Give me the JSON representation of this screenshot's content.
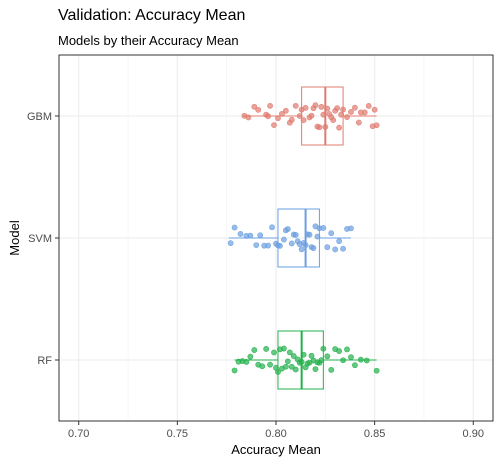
{
  "chart_data": {
    "type": "boxplot",
    "title": "Validation: Accuracy Mean",
    "subtitle": "Models by their Accuracy Mean",
    "xlabel": "Accuracy Mean",
    "ylabel": "Model",
    "xlim": [
      0.69,
      0.91
    ],
    "xticks": [
      "0.70",
      "0.75",
      "0.80",
      "0.85",
      "0.90"
    ],
    "xtick_values": [
      0.7,
      0.75,
      0.8,
      0.85,
      0.9
    ],
    "categories": [
      "GBM",
      "SVM",
      "RF"
    ],
    "grid": true,
    "legend": "none",
    "series": [
      {
        "category": "GBM",
        "color": "#e07b6f",
        "box": {
          "whisker_low": 0.783,
          "q1": 0.813,
          "median": 0.825,
          "q3": 0.834,
          "whisker_high": 0.851
        },
        "points": [
          0.784,
          0.786,
          0.789,
          0.791,
          0.795,
          0.796,
          0.797,
          0.799,
          0.801,
          0.803,
          0.805,
          0.807,
          0.808,
          0.81,
          0.812,
          0.813,
          0.814,
          0.815,
          0.817,
          0.818,
          0.819,
          0.82,
          0.821,
          0.822,
          0.823,
          0.824,
          0.825,
          0.826,
          0.827,
          0.828,
          0.829,
          0.83,
          0.831,
          0.832,
          0.833,
          0.834,
          0.836,
          0.838,
          0.84,
          0.842,
          0.843,
          0.845,
          0.847,
          0.849,
          0.85,
          0.851
        ]
      },
      {
        "category": "SVM",
        "color": "#6b9fe0",
        "box": {
          "whisker_low": 0.776,
          "q1": 0.801,
          "median": 0.815,
          "q3": 0.822,
          "whisker_high": 0.838
        },
        "points": [
          0.777,
          0.779,
          0.782,
          0.785,
          0.787,
          0.79,
          0.792,
          0.794,
          0.796,
          0.798,
          0.8,
          0.801,
          0.802,
          0.804,
          0.805,
          0.806,
          0.808,
          0.809,
          0.81,
          0.811,
          0.812,
          0.813,
          0.814,
          0.815,
          0.816,
          0.817,
          0.818,
          0.819,
          0.82,
          0.821,
          0.822,
          0.824,
          0.826,
          0.828,
          0.83,
          0.832,
          0.834,
          0.836,
          0.838
        ]
      },
      {
        "category": "RF",
        "color": "#22b04b",
        "box": {
          "whisker_low": 0.779,
          "q1": 0.801,
          "median": 0.813,
          "q3": 0.824,
          "whisker_high": 0.851
        },
        "points": [
          0.779,
          0.781,
          0.783,
          0.785,
          0.787,
          0.789,
          0.791,
          0.793,
          0.795,
          0.797,
          0.799,
          0.8,
          0.801,
          0.802,
          0.803,
          0.804,
          0.805,
          0.806,
          0.807,
          0.808,
          0.809,
          0.81,
          0.811,
          0.812,
          0.813,
          0.814,
          0.815,
          0.816,
          0.817,
          0.818,
          0.819,
          0.82,
          0.821,
          0.822,
          0.823,
          0.824,
          0.826,
          0.828,
          0.83,
          0.832,
          0.834,
          0.836,
          0.838,
          0.84,
          0.843,
          0.846,
          0.851
        ]
      }
    ]
  }
}
